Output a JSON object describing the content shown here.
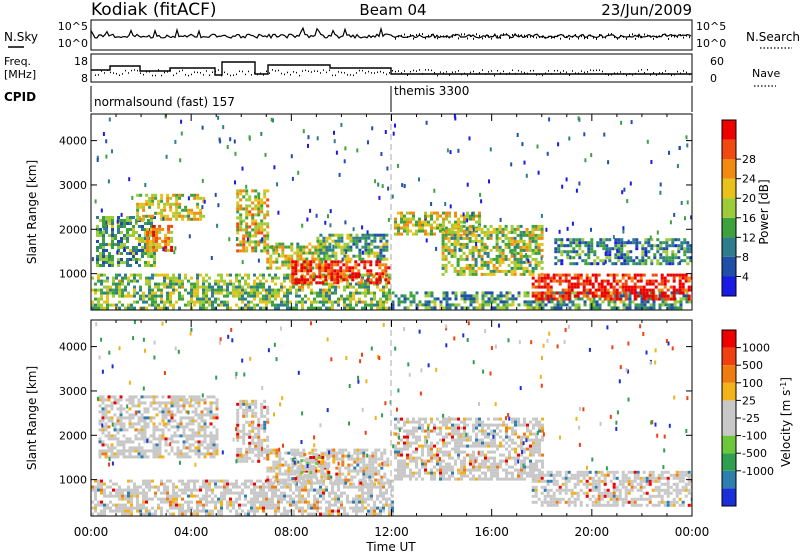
{
  "header": {
    "station": "Kodiak (fitACF)",
    "beam": "Beam 04",
    "date": "23/Jun/2009"
  },
  "noise_panel": {
    "left_label": "N.Sky",
    "right_label": "N.Search",
    "left_ticks": [
      "10^5",
      "10^0"
    ],
    "right_ticks": [
      "10^5",
      "10^0"
    ]
  },
  "freq_panel": {
    "left_label_1": "Freq.",
    "left_label_2": "[MHz]",
    "left_ticks": [
      "18",
      "8"
    ],
    "right_ticks": [
      "60",
      "0"
    ],
    "right_label": "Nave"
  },
  "cpid_panel": {
    "label": "CPID",
    "modes": [
      {
        "name": "normalsound (fast) 157",
        "start_hour": 0
      },
      {
        "name": "themis 3300",
        "start_hour": 12
      }
    ]
  },
  "chart_data": [
    {
      "type": "heatmap",
      "name": "power",
      "ylabel": "Slant Range [km]",
      "xlabel": "",
      "ylim": [
        180,
        4600
      ],
      "yticks": [
        "1000",
        "2000",
        "3000",
        "4000"
      ],
      "colorbar": {
        "label": "Power [dB]",
        "ticks": [
          "4",
          "8",
          "12",
          "16",
          "20",
          "24",
          "28"
        ],
        "colors": [
          "#1a1ae6",
          "#1f4fa8",
          "#2e7d8c",
          "#3da13d",
          "#9ccc3a",
          "#e8c21a",
          "#f08a10",
          "#f04a10",
          "#ee0000"
        ]
      },
      "regions": [
        {
          "t0": 0.0,
          "t1": 11.9,
          "r0": 200,
          "r1": 1000,
          "level": 0.45
        },
        {
          "t0": 0.2,
          "t1": 2.5,
          "r0": 1200,
          "r1": 2300,
          "level": 0.35
        },
        {
          "t0": 1.8,
          "t1": 4.5,
          "r0": 2200,
          "r1": 2800,
          "level": 0.55
        },
        {
          "t0": 2.2,
          "t1": 3.2,
          "r0": 1500,
          "r1": 2100,
          "level": 0.7
        },
        {
          "t0": 5.8,
          "t1": 7.0,
          "r0": 1500,
          "r1": 2900,
          "level": 0.6
        },
        {
          "t0": 7.0,
          "t1": 9.5,
          "r0": 1100,
          "r1": 1700,
          "level": 0.55
        },
        {
          "t0": 8.0,
          "t1": 11.9,
          "r0": 800,
          "r1": 1300,
          "level": 0.9
        },
        {
          "t0": 9.0,
          "t1": 11.8,
          "r0": 1300,
          "r1": 1900,
          "level": 0.4
        },
        {
          "t0": 12.1,
          "t1": 15.5,
          "r0": 1900,
          "r1": 2400,
          "level": 0.55
        },
        {
          "t0": 14.0,
          "t1": 18.0,
          "r0": 1000,
          "r1": 2100,
          "level": 0.5
        },
        {
          "t0": 12.0,
          "t1": 24.0,
          "r0": 200,
          "r1": 600,
          "level": 0.35
        },
        {
          "t0": 17.6,
          "t1": 24.0,
          "r0": 400,
          "r1": 1000,
          "level": 0.95
        },
        {
          "t0": 18.5,
          "t1": 24.0,
          "r0": 1200,
          "r1": 1800,
          "level": 0.3
        }
      ]
    },
    {
      "type": "heatmap",
      "name": "velocity",
      "ylabel": "Slant Range [km]",
      "xlabel": "Time UT",
      "ylim": [
        180,
        4600
      ],
      "yticks": [
        "1000",
        "2000",
        "3000",
        "4000"
      ],
      "colorbar": {
        "label": "Velocity [m s^-1]",
        "ticks": [
          "1000",
          "500",
          "100",
          "25",
          "-25",
          "-100",
          "-500",
          "-1000"
        ],
        "colors": [
          "#1a2fd8",
          "#2e7fb0",
          "#2f9e4f",
          "#6cc83a",
          "#c8c8c8",
          "#c8c8c8",
          "#f2b21a",
          "#f07c10",
          "#f04010",
          "#ee0000"
        ]
      },
      "regions": [
        {
          "t0": 0.0,
          "t1": 12.0,
          "r0": 200,
          "r1": 1000,
          "level": 0.5
        },
        {
          "t0": 0.3,
          "t1": 5.0,
          "r0": 1500,
          "r1": 2900,
          "level": 0.5
        },
        {
          "t0": 5.8,
          "t1": 7.0,
          "r0": 1400,
          "r1": 2800,
          "level": 0.5
        },
        {
          "t0": 7.0,
          "t1": 11.8,
          "r0": 900,
          "r1": 1700,
          "level": 0.55
        },
        {
          "t0": 8.0,
          "t1": 9.5,
          "r0": 1000,
          "r1": 1600,
          "level": 0.72
        },
        {
          "t0": 12.1,
          "t1": 18.0,
          "r0": 1000,
          "r1": 2400,
          "level": 0.5
        },
        {
          "t0": 17.6,
          "t1": 24.0,
          "r0": 400,
          "r1": 1200,
          "level": 0.5
        }
      ]
    }
  ],
  "xaxis": {
    "label": "Time UT",
    "ticks": [
      "00:00",
      "04:00",
      "08:00",
      "12:00",
      "16:00",
      "20:00",
      "00:00"
    ]
  }
}
